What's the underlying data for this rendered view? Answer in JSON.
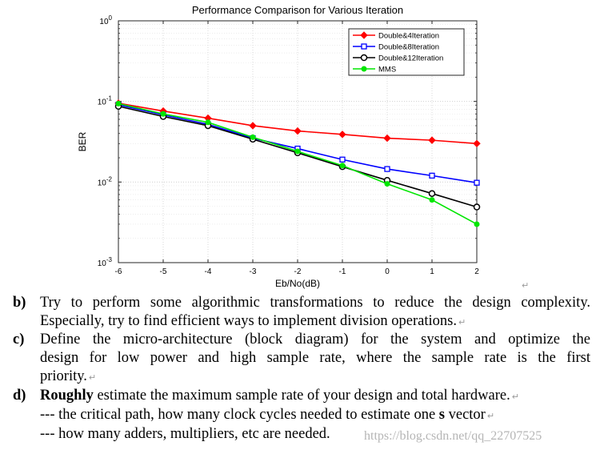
{
  "chart_data": {
    "type": "line",
    "title": "Performance Comparison for Various Iteration",
    "xlabel": "Eb/No(dB)",
    "ylabel": "BER",
    "x": [
      -6,
      -5,
      -4,
      -3,
      -2,
      -1,
      0,
      1,
      2
    ],
    "xlim": [
      -6,
      2
    ],
    "ylim": [
      0.001,
      1
    ],
    "yscale": "log",
    "x_ticks": [
      "-6",
      "-5",
      "-4",
      "-3",
      "-2",
      "-1",
      "0",
      "1",
      "2"
    ],
    "y_ticks": [
      {
        "base": "10",
        "exp": "0"
      },
      {
        "base": "10",
        "exp": "-1"
      },
      {
        "base": "10",
        "exp": "-2"
      },
      {
        "base": "10",
        "exp": "-3"
      }
    ],
    "grid": true,
    "legend_position": "top-right",
    "series": [
      {
        "name": "Double&4Iteration",
        "color": "#ff0000",
        "marker": "diamond",
        "values": [
          0.095,
          0.076,
          0.062,
          0.05,
          0.043,
          0.039,
          0.035,
          0.033,
          0.03
        ]
      },
      {
        "name": "Double&8Iteration",
        "color": "#0000ff",
        "marker": "square",
        "values": [
          0.091,
          0.068,
          0.052,
          0.035,
          0.026,
          0.019,
          0.0145,
          0.012,
          0.0098
        ]
      },
      {
        "name": "Double&12Iteration",
        "color": "#000000",
        "marker": "circle",
        "values": [
          0.087,
          0.065,
          0.05,
          0.034,
          0.023,
          0.0155,
          0.0105,
          0.0072,
          0.0049
        ]
      },
      {
        "name": "MMS",
        "color": "#00e600",
        "marker": "dot",
        "values": [
          0.094,
          0.07,
          0.055,
          0.036,
          0.024,
          0.016,
          0.0095,
          0.006,
          0.003
        ]
      }
    ]
  },
  "document": {
    "items": [
      {
        "label": "b)",
        "lines": [
          "Try to perform some algorithmic transformations to reduce the design complexity.",
          "Especially, try to find efficient ways to implement division operations."
        ]
      },
      {
        "label": "c)",
        "lines": [
          "Define the micro-architecture (block diagram) for the system and optimize the",
          "design for low power and high sample rate, where the sample rate is the first",
          "priority."
        ]
      },
      {
        "label": "d)",
        "bold": "Roughly",
        "rest": " estimate the maximum sample rate of your design and total hardware.",
        "sub1_pre": "--- the critical path, how many clock cycles needed to estimate one ",
        "sub1_bold": "s",
        "sub1_post": " vector",
        "sub2": "--- how many adders, multipliers, etc are needed."
      }
    ],
    "paragraph_mark": "↵",
    "watermark": "https://blog.csdn.net/qq_22707525"
  }
}
